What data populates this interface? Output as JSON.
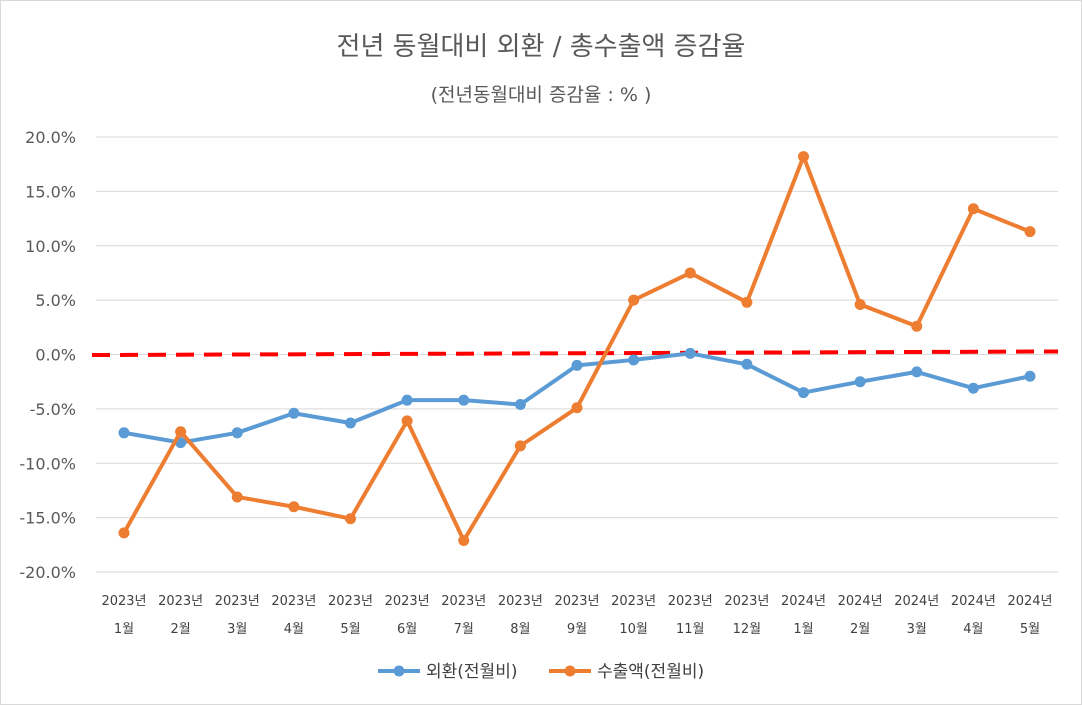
{
  "chart_data": {
    "type": "line",
    "title": "전년 동월대비 외환 / 총수출액 증감율",
    "subtitle": "(전년동월대비 증감율 : % )",
    "categories": [
      [
        "2023년",
        "1월"
      ],
      [
        "2023년",
        "2월"
      ],
      [
        "2023년",
        "3월"
      ],
      [
        "2023년",
        "4월"
      ],
      [
        "2023년",
        "5월"
      ],
      [
        "2023년",
        "6월"
      ],
      [
        "2023년",
        "7월"
      ],
      [
        "2023년",
        "8월"
      ],
      [
        "2023년",
        "9월"
      ],
      [
        "2023년",
        "10월"
      ],
      [
        "2023년",
        "11월"
      ],
      [
        "2023년",
        "12월"
      ],
      [
        "2024년",
        "1월"
      ],
      [
        "2024년",
        "2월"
      ],
      [
        "2024년",
        "3월"
      ],
      [
        "2024년",
        "4월"
      ],
      [
        "2024년",
        "5월"
      ]
    ],
    "yticks": [
      "20.0%",
      "15.0%",
      "10.0%",
      "5.0%",
      "0.0%",
      "-5.0%",
      "-10.0%",
      "-15.0%",
      "-20.0%"
    ],
    "ylim": [
      -20,
      20
    ],
    "grid": true,
    "legend_position": "bottom",
    "series": [
      {
        "name": "외환(전월비)",
        "color": "#5b9bd5",
        "values": [
          -7.2,
          -8.1,
          -7.2,
          -5.4,
          -6.3,
          -4.2,
          -4.2,
          -4.6,
          -1.0,
          -0.5,
          0.1,
          -0.9,
          -3.5,
          -2.5,
          -1.6,
          -3.1,
          -2.0
        ]
      },
      {
        "name": "수출액(전월비)",
        "color": "#ed7d31",
        "values": [
          -16.4,
          -7.1,
          -13.1,
          -14.0,
          -15.1,
          -6.1,
          -17.1,
          -8.4,
          -4.9,
          5.0,
          7.5,
          4.8,
          18.2,
          4.6,
          2.6,
          13.4,
          11.3
        ]
      }
    ],
    "trend_line": {
      "color": "#ff0000",
      "start": -0.05,
      "end": 0.28
    }
  }
}
